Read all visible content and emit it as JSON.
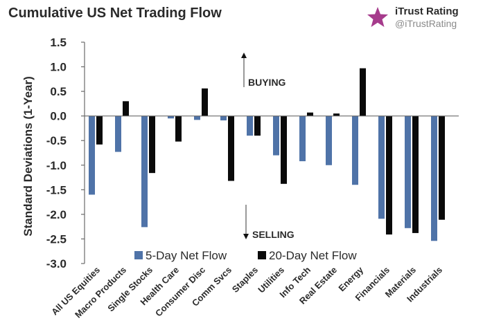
{
  "header": {
    "title": "Cumulative US Net Trading Flow"
  },
  "brand": {
    "name": "iTrust Rating",
    "handle": "@iTrustRating",
    "logo_icon": "star-logo-icon"
  },
  "colors": {
    "series_5day": "#4f73a8",
    "series_20day": "#0a0a0a",
    "axis": "#6a6a6a",
    "logo_star": "#a63b8c"
  },
  "chart_data": {
    "type": "bar",
    "title": "Cumulative US Net Trading Flow",
    "xlabel": "",
    "ylabel": "Standard Deviations (1-Year)",
    "ylim": [
      -3.0,
      1.5
    ],
    "yticks": [
      1.5,
      1.0,
      0.5,
      0.0,
      -0.5,
      -1.0,
      -1.5,
      -2.0,
      -2.5,
      -3.0
    ],
    "ytick_labels": [
      "1.5",
      "1.0",
      "0.5",
      "0.0",
      "-0.5",
      "-1.0",
      "-1.5",
      "-2.0",
      "-2.5",
      "-3.0"
    ],
    "grid": false,
    "legend_position": "bottom-center",
    "categories": [
      "All US Equities",
      "Macro Products",
      "Single Stocks",
      "Health Care",
      "Consumer Disc",
      "Comm Svcs",
      "Staples",
      "Utilities",
      "Info Tech",
      "Real Estate",
      "Energy",
      "Financials",
      "Materials",
      "Industrials"
    ],
    "series": [
      {
        "name": "5-Day Net Flow",
        "values": [
          -1.6,
          -0.73,
          -2.26,
          -0.05,
          -0.08,
          -0.09,
          -0.4,
          -0.8,
          -0.92,
          -1.0,
          -1.4,
          -2.09,
          -2.28,
          -2.54
        ]
      },
      {
        "name": "20-Day Net Flow",
        "values": [
          -0.58,
          0.3,
          -1.16,
          -0.52,
          0.56,
          -1.32,
          -0.4,
          -1.38,
          0.07,
          0.05,
          0.97,
          -2.41,
          -2.38,
          -2.11
        ]
      }
    ],
    "annotations": {
      "buying": "BUYING",
      "selling": "SELLING"
    }
  }
}
